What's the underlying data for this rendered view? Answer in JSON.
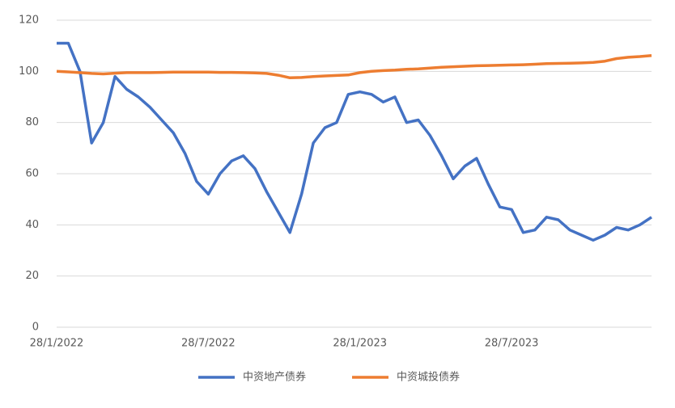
{
  "chart_data": {
    "type": "line",
    "categories": [
      "28/1/2022",
      null,
      null,
      null,
      null,
      null,
      null,
      null,
      null,
      null,
      null,
      null,
      null,
      "28/7/2022",
      null,
      null,
      null,
      null,
      null,
      null,
      null,
      null,
      null,
      null,
      null,
      null,
      "28/1/2023",
      null,
      null,
      null,
      null,
      null,
      null,
      null,
      null,
      null,
      null,
      null,
      null,
      "28/7/2023",
      null,
      null,
      null,
      null,
      null,
      null,
      null,
      null,
      null,
      null,
      null,
      null
    ],
    "series": [
      {
        "name": "中资地产债券",
        "color": "#4472c4",
        "values": [
          111,
          111,
          100,
          72,
          80,
          98,
          93,
          90,
          86,
          81,
          76,
          68,
          57,
          52,
          60,
          65,
          67,
          62,
          53,
          45,
          37,
          52,
          72,
          78,
          80,
          91,
          92,
          91,
          88,
          90,
          80,
          81,
          75,
          67,
          58,
          63,
          66,
          56,
          47,
          46,
          37,
          38,
          43,
          42,
          38,
          36,
          34,
          36,
          39,
          38,
          40,
          43
        ]
      },
      {
        "name": "中资城投债券",
        "color": "#ed7d31",
        "values": [
          100,
          99.8,
          99.5,
          99.2,
          99,
          99.3,
          99.5,
          99.5,
          99.5,
          99.6,
          99.7,
          99.7,
          99.7,
          99.7,
          99.6,
          99.6,
          99.5,
          99.4,
          99.2,
          98.5,
          97.5,
          97.6,
          98,
          98.2,
          98.4,
          98.6,
          99.5,
          100,
          100.3,
          100.5,
          100.8,
          101,
          101.3,
          101.6,
          101.8,
          102,
          102.2,
          102.3,
          102.4,
          102.5,
          102.6,
          102.8,
          103,
          103.1,
          103.2,
          103.3,
          103.5,
          104,
          105,
          105.5,
          105.8,
          106.2
        ]
      }
    ],
    "ylim": [
      0,
      120
    ],
    "yticks": [
      0,
      20,
      40,
      60,
      80,
      100,
      120
    ],
    "grid": true,
    "legend": "bottom"
  }
}
